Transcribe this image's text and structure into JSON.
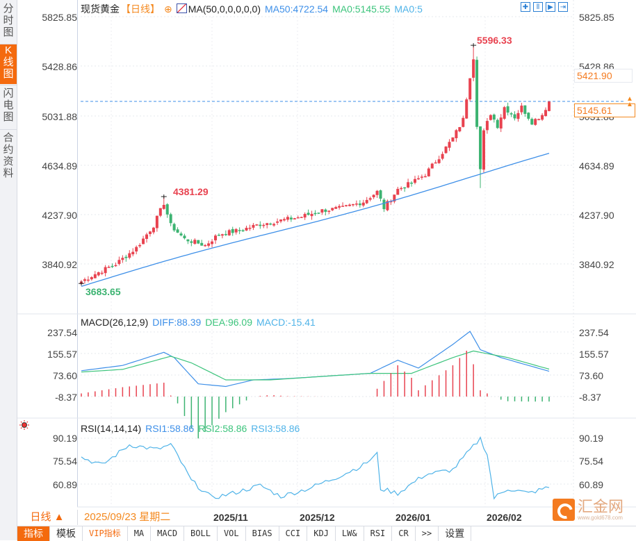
{
  "sidebar": {
    "tabs": [
      {
        "label": "分时图",
        "active": false
      },
      {
        "label": "K线图",
        "active": true
      },
      {
        "label": "闪电图",
        "active": false
      },
      {
        "label": "合约资料",
        "active": false
      }
    ]
  },
  "header": {
    "title": "现货黄金",
    "period": "【日线】",
    "add_icon": "⊕",
    "indicator": "MA(50,0,0,0,0,0)",
    "ma50": "MA50:4722.54",
    "ma0a": "MA0:5145.55",
    "ma0b": "MA0:5",
    "tools": [
      "crosshair-icon",
      "zoom-in-icon",
      "play-forward-icon",
      "jump-end-icon"
    ]
  },
  "price_panel": {
    "y_labels": [
      "5825.85",
      "5428.86",
      "5031.88",
      "4634.89",
      "4237.90",
      "3840.92"
    ],
    "high_label": "5596.33",
    "peak1_label": "4381.29",
    "low_label": "3683.65",
    "box_upper": "5421.90",
    "box_current": "5145.61"
  },
  "macd_panel": {
    "title": "MACD(26,12,9)",
    "diff": "DIFF:88.39",
    "dea": "DEA:96.09",
    "macd": "MACD:-15.41",
    "y_labels": [
      "237.54",
      "155.57",
      "73.60",
      "-8.37"
    ]
  },
  "rsi_panel": {
    "title": "RSI(14,14,14)",
    "rsi1": "RSI1:58.86",
    "rsi2": "RSI2:58.86",
    "rsi3": "RSI3:58.86",
    "y_labels": [
      "90.19",
      "75.54",
      "60.89"
    ]
  },
  "date_bar": {
    "period_select": "日线 ▲",
    "cursor_date": "2025/09/23 星期二",
    "months": [
      "2025/11",
      "2025/12",
      "2026/01",
      "2026/02"
    ]
  },
  "toolbar": {
    "items": [
      "指标",
      "模板",
      "VIP指标",
      "MA",
      "MACD",
      "BOLL",
      "VOL",
      "BIAS",
      "CCI",
      "KDJ",
      "LW&",
      "RSI",
      "CR",
      ">>",
      "设置"
    ]
  },
  "logo": {
    "name": "汇金网",
    "url_text": "www.gold678.com"
  },
  "colors": {
    "up": "#e8424f",
    "down": "#3cb371",
    "ma": "#3d8fe8",
    "dea": "#3cc47c",
    "accent": "#f46a0e"
  },
  "chart_data": [
    {
      "type": "candlestick",
      "title": "现货黄金 日线",
      "ylim": [
        3640,
        5826
      ],
      "y_ticks": [
        5825.85,
        5428.86,
        5031.88,
        4634.89,
        4237.9,
        3840.92
      ],
      "annotations": {
        "high": 5596.33,
        "local_high": 4381.29,
        "low": 3683.65,
        "current": 5145.61
      },
      "x_labels": [
        "2025/11",
        "2025/12",
        "2026/01",
        "2026/02"
      ],
      "series": [
        {
          "name": "MA50",
          "last": 4722.54
        }
      ]
    },
    {
      "type": "line",
      "title": "MACD(26,12,9)",
      "y_ticks": [
        237.54,
        155.57,
        73.6,
        -8.37
      ],
      "series": [
        {
          "name": "DIFF",
          "last": 88.39
        },
        {
          "name": "DEA",
          "last": 96.09
        },
        {
          "name": "MACD",
          "last": -15.41
        }
      ]
    },
    {
      "type": "line",
      "title": "RSI(14,14,14)",
      "y_ticks": [
        90.19,
        75.54,
        60.89
      ],
      "series": [
        {
          "name": "RSI1",
          "last": 58.86
        },
        {
          "name": "RSI2",
          "last": 58.86
        },
        {
          "name": "RSI3",
          "last": 58.86
        }
      ]
    }
  ]
}
